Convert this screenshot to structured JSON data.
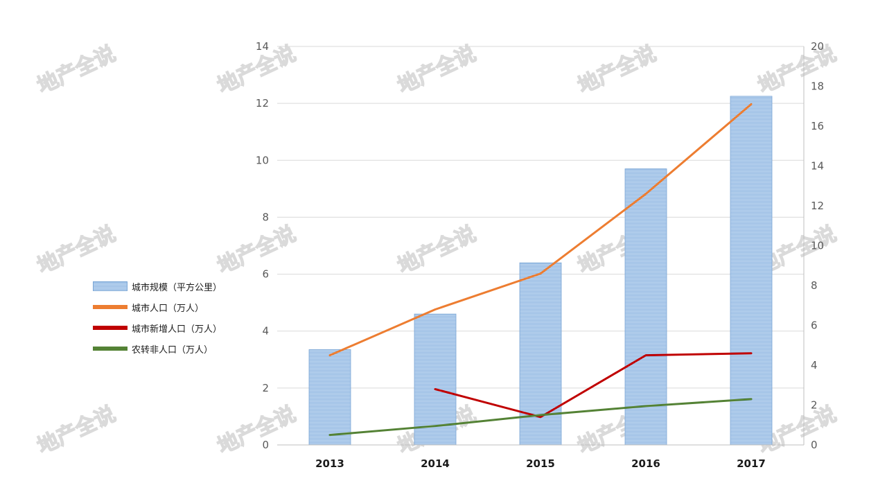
{
  "watermark_text": "地产全说",
  "colors": {
    "bar": "#9dc3e6",
    "bar_stroke": "#7aa6d6",
    "grid": "#d9d9d9",
    "axis": "#bfbfbf",
    "series_colors": [
      "#ed7d31",
      "#c00000",
      "#548235"
    ]
  },
  "chart_data": {
    "type": "bar",
    "categories": [
      "2013",
      "2014",
      "2015",
      "2016",
      "2017"
    ],
    "bar_series": {
      "name": "城市规模（平方公里）",
      "values": [
        3.35,
        4.6,
        6.4,
        9.7,
        12.25
      ]
    },
    "line_series": [
      {
        "name": "城市人口（万人）",
        "values": [
          4.5,
          6.8,
          8.6,
          12.6,
          17.1
        ]
      },
      {
        "name": "城市新增人口（万人）",
        "values": [
          null,
          2.8,
          1.4,
          4.5,
          4.6
        ]
      },
      {
        "name": "农转非人口（万人）",
        "values": [
          0.5,
          0.95,
          1.5,
          1.95,
          2.3
        ]
      }
    ],
    "left_axis": {
      "min": 0,
      "max": 14,
      "ticks": [
        "0",
        "2",
        "4",
        "6",
        "8",
        "10",
        "12",
        "14"
      ]
    },
    "right_axis": {
      "min": 0,
      "max": 20,
      "ticks": [
        "0",
        "2",
        "4",
        "6",
        "8",
        "10",
        "12",
        "14",
        "16",
        "18",
        "20"
      ]
    },
    "grid": true,
    "legend_position": "left"
  }
}
